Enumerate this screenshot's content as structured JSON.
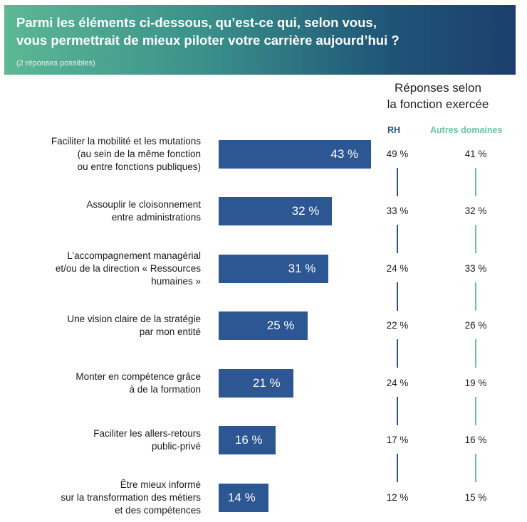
{
  "header": {
    "title_line1": "Parmi les éléments ci-dessous, qu’est-ce qui, selon vous,",
    "title_line2": "vous permettrait de mieux piloter votre carrière aujourd’hui ?",
    "subtitle": "(2 réponses possibles)"
  },
  "column_group": {
    "line1": "Réponses selon",
    "line2": "la fonction exercée"
  },
  "colors": {
    "bar": "#2c5793",
    "rh": "#2c4f86",
    "autres": "#6cc3a4"
  },
  "chart_data": {
    "type": "bar",
    "orientation": "horizontal",
    "title": "Parmi les éléments ci-dessous, qu’est-ce qui, selon vous, vous permettrait de mieux piloter votre carrière aujourd’hui ?",
    "categories": [
      [
        "Faciliter la mobilité et les mutations",
        "(au sein de la même fonction",
        "ou entre fonctions publiques)"
      ],
      [
        "Assouplir le cloisonnement",
        "entre administrations"
      ],
      [
        "L’accompagnement managérial",
        "et/ou de la direction « Ressources",
        "humaines »"
      ],
      [
        "Une vision claire de la stratégie",
        "par mon entité"
      ],
      [
        "Monter en compétence grâce",
        "à de la formation"
      ],
      [
        "Faciliter les allers-retours",
        "public-privé"
      ],
      [
        "Être mieux informé",
        "sur la transformation des métiers",
        "et des compétences"
      ]
    ],
    "values": [
      43,
      32,
      31,
      25,
      21,
      16,
      14
    ],
    "value_labels": [
      "43 %",
      "32 %",
      "31 %",
      "25 %",
      "21 %",
      "16 %",
      "14 %"
    ],
    "series": [
      {
        "name": "RH",
        "values": [
          49,
          33,
          24,
          22,
          24,
          17,
          12
        ],
        "labels": [
          "49 %",
          "33 %",
          "24 %",
          "22 %",
          "24 %",
          "17 %",
          "12 %"
        ]
      },
      {
        "name": "Autres domaines",
        "values": [
          41,
          32,
          33,
          26,
          19,
          16,
          15
        ],
        "labels": [
          "41 %",
          "32 %",
          "33 %",
          "26 %",
          "19 %",
          "16 %",
          "15 %"
        ]
      }
    ],
    "xlim": [
      0,
      100
    ],
    "unit": "%"
  }
}
